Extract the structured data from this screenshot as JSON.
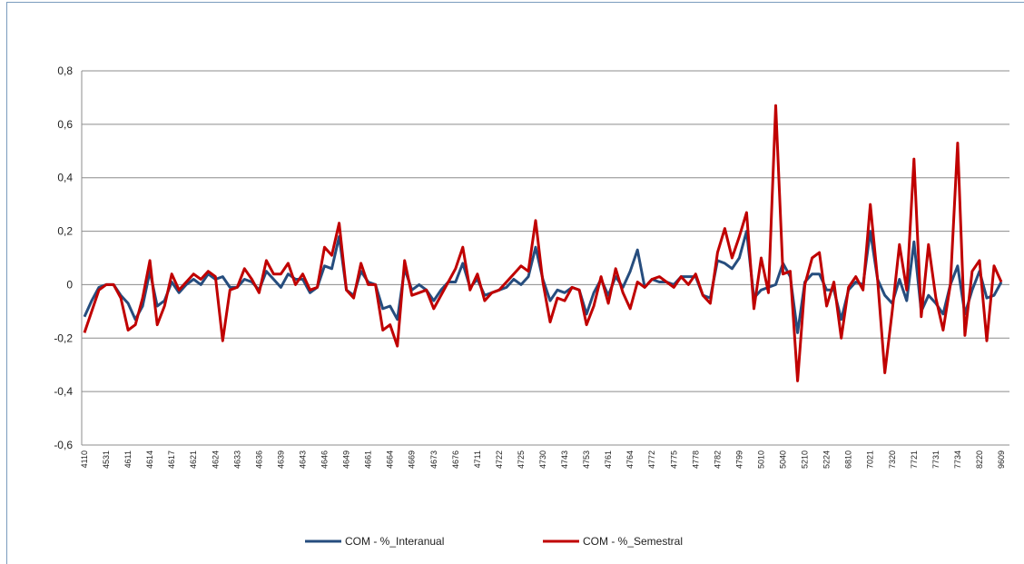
{
  "chart_data": {
    "type": "line",
    "categories": [
      "4110",
      null,
      null,
      "4531",
      null,
      null,
      "4611",
      null,
      null,
      "4614",
      null,
      null,
      "4617",
      null,
      null,
      "4621",
      null,
      null,
      "4624",
      null,
      null,
      "4633",
      null,
      null,
      "4636",
      null,
      null,
      "4639",
      null,
      null,
      "4643",
      null,
      null,
      "4646",
      null,
      null,
      "4649",
      null,
      null,
      "4661",
      null,
      null,
      "4664",
      null,
      null,
      "4669",
      null,
      null,
      "4673",
      null,
      null,
      "4676",
      null,
      null,
      "4711",
      null,
      null,
      "4722",
      null,
      null,
      "4725",
      null,
      null,
      "4730",
      null,
      null,
      "4743",
      null,
      null,
      "4753",
      null,
      null,
      "4761",
      null,
      null,
      "4764",
      null,
      null,
      "4772",
      null,
      null,
      "4775",
      null,
      null,
      "4778",
      null,
      null,
      "4782",
      null,
      null,
      "4799",
      null,
      null,
      "5010",
      null,
      null,
      "5040",
      null,
      null,
      "5210",
      null,
      null,
      "5224",
      null,
      null,
      "6810",
      null,
      null,
      "7021",
      null,
      null,
      "7320",
      null,
      null,
      "7721",
      null,
      null,
      "7731",
      null,
      null,
      "7734",
      null,
      null,
      "8220",
      null,
      null,
      "9609"
    ],
    "series": [
      {
        "name": "COM - %_Interanual",
        "color": "#264d7e",
        "values": [
          -0.12,
          -0.06,
          -0.01,
          0,
          0,
          -0.04,
          -0.07,
          -0.13,
          -0.08,
          0.05,
          -0.08,
          -0.06,
          0.01,
          -0.03,
          0,
          0.02,
          0,
          0.04,
          0.02,
          0.03,
          -0.01,
          -0.01,
          0.02,
          0.01,
          -0.02,
          0.05,
          0.02,
          -0.01,
          0.04,
          0.02,
          0.02,
          -0.03,
          -0.01,
          0.07,
          0.06,
          0.18,
          -0.02,
          -0.04,
          0.05,
          0.01,
          0,
          -0.09,
          -0.08,
          -0.13,
          0.06,
          -0.02,
          0,
          -0.02,
          -0.06,
          -0.02,
          0.01,
          0.01,
          0.08,
          -0.01,
          0.02,
          -0.04,
          -0.03,
          -0.02,
          -0.01,
          0.02,
          0,
          0.03,
          0.14,
          0.02,
          -0.06,
          -0.02,
          -0.03,
          -0.01,
          -0.02,
          -0.11,
          -0.03,
          0.02,
          -0.04,
          0.03,
          -0.01,
          0.05,
          0.13,
          -0.01,
          0.02,
          0.01,
          0.01,
          0,
          0.03,
          0.03,
          0.03,
          -0.04,
          -0.05,
          0.09,
          0.08,
          0.06,
          0.1,
          0.2,
          -0.05,
          -0.02,
          -0.01,
          0,
          0.08,
          0.03,
          -0.18,
          0.01,
          0.04,
          0.04,
          -0.02,
          -0.02,
          -0.13,
          -0.02,
          0.01,
          0,
          0.2,
          0.02,
          -0.04,
          -0.07,
          0.02,
          -0.06,
          0.16,
          -0.1,
          -0.04,
          -0.07,
          -0.11,
          0,
          0.07,
          -0.11,
          -0.02,
          0.05,
          -0.05,
          -0.04,
          0.01
        ]
      },
      {
        "name": "COM - %_Semestral",
        "color": "#c00000",
        "values": [
          -0.18,
          -0.1,
          -0.02,
          0,
          0,
          -0.05,
          -0.17,
          -0.15,
          -0.05,
          0.09,
          -0.15,
          -0.08,
          0.04,
          -0.02,
          0.01,
          0.04,
          0.02,
          0.05,
          0.03,
          -0.21,
          -0.02,
          -0.01,
          0.06,
          0.02,
          -0.03,
          0.09,
          0.04,
          0.04,
          0.08,
          0,
          0.04,
          -0.02,
          -0.01,
          0.14,
          0.11,
          0.23,
          -0.02,
          -0.05,
          0.08,
          0,
          0,
          -0.17,
          -0.15,
          -0.23,
          0.09,
          -0.04,
          -0.03,
          -0.02,
          -0.09,
          -0.04,
          0.01,
          0.06,
          0.14,
          -0.02,
          0.04,
          -0.06,
          -0.03,
          -0.02,
          0.01,
          0.04,
          0.07,
          0.05,
          0.24,
          0.01,
          -0.14,
          -0.05,
          -0.06,
          -0.01,
          -0.02,
          -0.15,
          -0.08,
          0.03,
          -0.07,
          0.06,
          -0.03,
          -0.09,
          0.01,
          -0.01,
          0.02,
          0.03,
          0.01,
          -0.01,
          0.03,
          0,
          0.04,
          -0.04,
          -0.07,
          0.12,
          0.21,
          0.1,
          0.18,
          0.27,
          -0.09,
          0.1,
          -0.03,
          0.67,
          0.04,
          0.05,
          -0.36,
          0,
          0.1,
          0.12,
          -0.08,
          0.01,
          -0.2,
          -0.01,
          0.03,
          -0.02,
          0.3,
          0.02,
          -0.33,
          -0.1,
          0.15,
          -0.02,
          0.47,
          -0.12,
          0.15,
          -0.05,
          -0.17,
          0,
          0.53,
          -0.19,
          0.05,
          0.09,
          -0.21,
          0.07,
          0.01
        ]
      }
    ],
    "ylim": [
      -0.6,
      0.8
    ],
    "yticks": [
      {
        "value": -0.6,
        "label": "-0,6"
      },
      {
        "value": -0.4,
        "label": "-0,4"
      },
      {
        "value": -0.2,
        "label": "-0,2"
      },
      0,
      {
        "value": 0.2,
        "label": "0,2"
      },
      {
        "value": 0.4,
        "label": "0,4"
      },
      {
        "value": 0.6,
        "label": "0,6"
      },
      {
        "value": 0.8,
        "label": "0,8"
      }
    ],
    "grid": true,
    "legend": "bottom"
  }
}
